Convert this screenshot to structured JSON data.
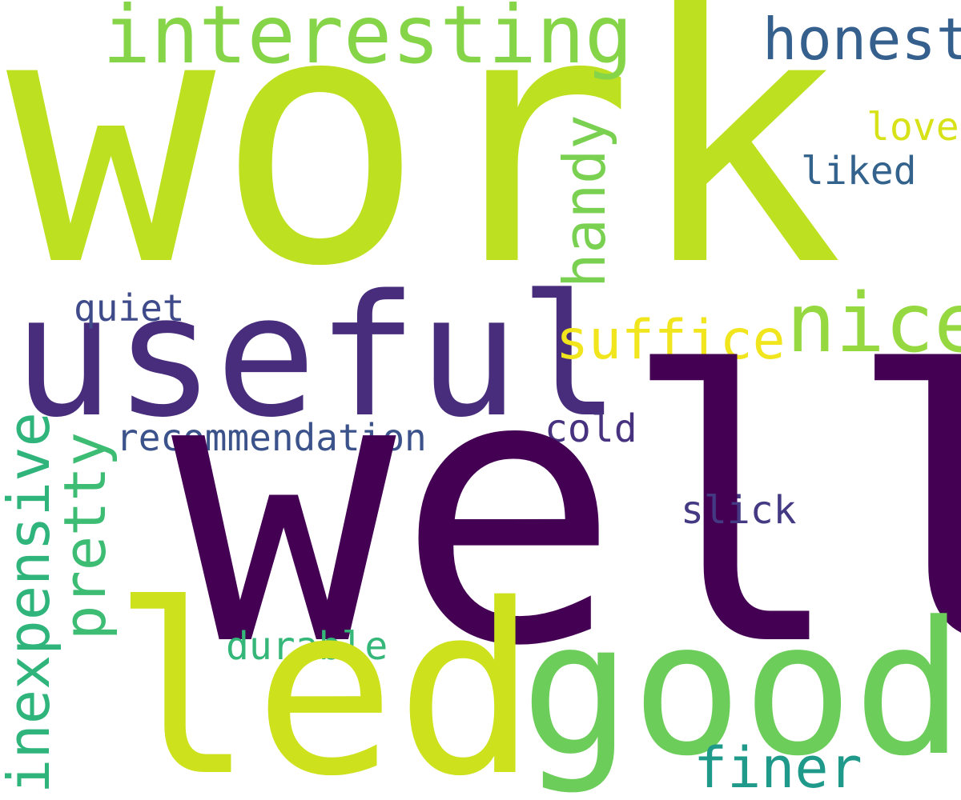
{
  "words": {
    "work": {
      "text": "work",
      "color": "#bde021"
    },
    "interesting": {
      "text": "interesting",
      "color": "#86d549"
    },
    "honest": {
      "text": "honest",
      "color": "#355f8d"
    },
    "love": {
      "text": "love",
      "color": "#d8e219"
    },
    "liked": {
      "text": "liked",
      "color": "#33638d"
    },
    "handy": {
      "text": "handy",
      "color": "#7ad151"
    },
    "useful": {
      "text": "useful",
      "color": "#472d7b"
    },
    "nice": {
      "text": "nice",
      "color": "#95d840"
    },
    "suffice": {
      "text": "suffice",
      "color": "#f1e51d"
    },
    "quiet": {
      "text": "quiet",
      "color": "#3e4a89"
    },
    "recommendation": {
      "text": "recommendation",
      "color": "#3b528b"
    },
    "cold": {
      "text": "cold",
      "color": "#46327e"
    },
    "well": {
      "text": "well",
      "color": "#440154"
    },
    "slick": {
      "text": "slick",
      "color": "#443983"
    },
    "inexpensive": {
      "text": "inexpensive",
      "color": "#2fb47c"
    },
    "pretty": {
      "text": "pretty",
      "color": "#3dbc74"
    },
    "durable": {
      "text": "durable",
      "color": "#35b779"
    },
    "led": {
      "text": "led",
      "color": "#cde11d"
    },
    "good": {
      "text": "good",
      "color": "#6ccd5a"
    },
    "finer": {
      "text": "finer",
      "color": "#1f9a8a"
    }
  }
}
